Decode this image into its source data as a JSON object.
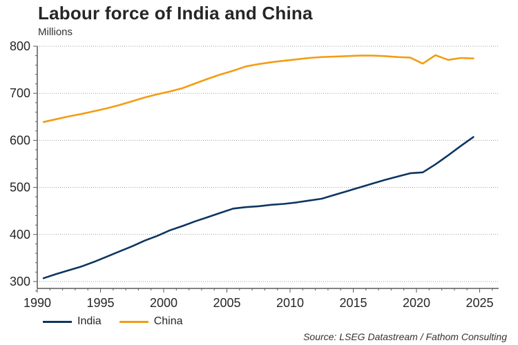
{
  "chart_data": {
    "type": "line",
    "title": "Labour force of India and China",
    "ylabel": "Millions",
    "xlabel": "",
    "xlim": [
      1990,
      2026.5
    ],
    "ylim": [
      280,
      800
    ],
    "xticks": [
      1990,
      1995,
      2000,
      2005,
      2010,
      2015,
      2020,
      2025
    ],
    "yticks": [
      300,
      400,
      500,
      600,
      700,
      800
    ],
    "y_minor_step": 20,
    "x_minor_step": 1,
    "grid": "horizontal-dotted",
    "legend_position": "bottom-left",
    "x": [
      1990.5,
      1991.5,
      1992.5,
      1993.5,
      1994.5,
      1995.5,
      1996.5,
      1997.5,
      1998.5,
      1999.5,
      2000.5,
      2001.5,
      2002.5,
      2003.5,
      2004.5,
      2005.5,
      2006.5,
      2007.5,
      2008.5,
      2009.5,
      2010.5,
      2011.5,
      2012.5,
      2013.5,
      2014.5,
      2015.5,
      2016.5,
      2017.5,
      2018.5,
      2019.5,
      2020.5,
      2021.5,
      2022.5,
      2023.5,
      2024.5
    ],
    "series": [
      {
        "name": "India",
        "color": "#0d3560",
        "values": [
          307,
          316,
          324,
          332,
          342,
          353,
          364,
          375,
          387,
          397,
          409,
          418,
          428,
          437,
          446,
          455,
          458,
          460,
          463,
          465,
          468,
          472,
          476,
          484,
          492,
          500,
          508,
          516,
          523,
          530,
          532,
          549,
          568,
          588,
          607
        ]
      },
      {
        "name": "China",
        "color": "#f39c12",
        "values": [
          639,
          645,
          651,
          656,
          662,
          668,
          675,
          683,
          691,
          698,
          704,
          711,
          721,
          731,
          740,
          748,
          757,
          762,
          766,
          769,
          772,
          775,
          777,
          778,
          779,
          780,
          780,
          779,
          777,
          776,
          763,
          781,
          771,
          775,
          774
        ]
      }
    ],
    "source": "Source: LSEG Datastream / Fathom Consulting"
  }
}
